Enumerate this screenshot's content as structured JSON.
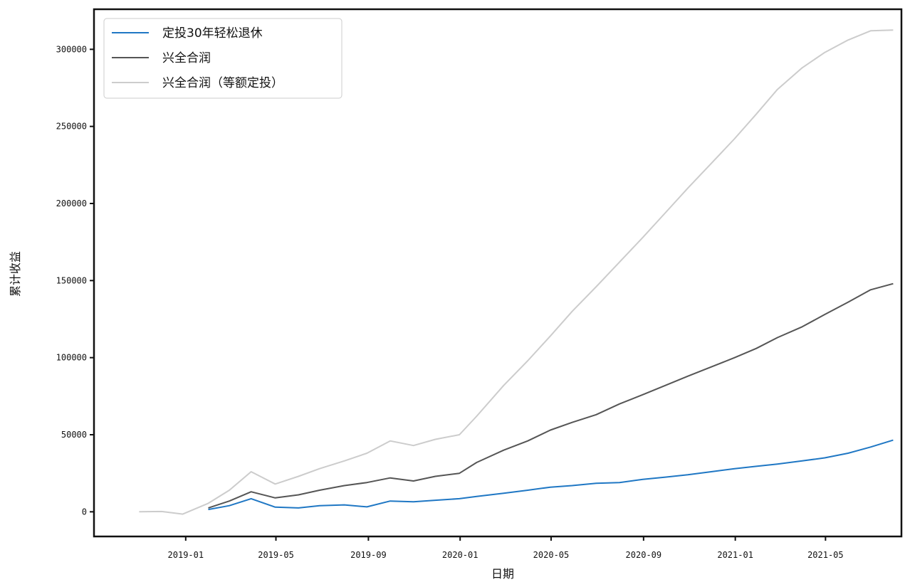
{
  "chart_data": {
    "type": "line",
    "xlabel": "日期",
    "ylabel": "累计收益",
    "x_ticks": [
      "2019-01",
      "2019-05",
      "2019-09",
      "2020-01",
      "2020-05",
      "2020-09",
      "2021-01",
      "2021-05"
    ],
    "y_ticks": [
      "0",
      "50000",
      "100000",
      "150000",
      "200000",
      "250000",
      "300000"
    ],
    "ylim": [
      -16000,
      326000
    ],
    "xlim": [
      "2018-09-01",
      "2021-08-10"
    ],
    "legend_position": "top-left",
    "grid": false,
    "x": [
      "2018-10-31",
      "2018-11-30",
      "2018-12-28",
      "2019-01-31",
      "2019-02-28",
      "2019-03-29",
      "2019-04-30",
      "2019-05-31",
      "2019-06-28",
      "2019-07-31",
      "2019-08-30",
      "2019-09-30",
      "2019-10-31",
      "2019-11-29",
      "2019-12-31",
      "2020-01-23",
      "2020-02-28",
      "2020-03-31",
      "2020-04-30",
      "2020-05-29",
      "2020-06-30",
      "2020-07-31",
      "2020-08-31",
      "2020-09-30",
      "2020-10-30",
      "2020-11-30",
      "2020-12-31",
      "2021-01-29",
      "2021-02-26",
      "2021-03-31",
      "2021-04-30",
      "2021-05-31",
      "2021-06-30",
      "2021-07-30"
    ],
    "series": [
      {
        "name": "定投30年轻松退休",
        "color": "#1f77c4",
        "values": [
          null,
          null,
          null,
          1500,
          4000,
          8500,
          3000,
          2500,
          4000,
          4500,
          3200,
          7000,
          6500,
          7500,
          8500,
          10000,
          12000,
          14000,
          16000,
          17000,
          18500,
          19000,
          21000,
          22500,
          24000,
          26000,
          28000,
          29500,
          31000,
          33000,
          35000,
          38000,
          42000,
          46500
        ]
      },
      {
        "name": "兴全合润",
        "color": "#555555",
        "values": [
          null,
          null,
          null,
          2500,
          7000,
          13000,
          9000,
          11000,
          14000,
          17000,
          19000,
          22000,
          20000,
          23000,
          25000,
          32000,
          40000,
          46000,
          53000,
          58000,
          63000,
          70000,
          76000,
          82000,
          88000,
          94000,
          100000,
          106000,
          113000,
          120000,
          128000,
          136000,
          144000,
          148000
        ]
      },
      {
        "name": "兴全合润（等额定投）",
        "color": "#cccccc",
        "values": [
          0,
          200,
          -1500,
          5500,
          14000,
          26000,
          18000,
          23000,
          28000,
          33000,
          38000,
          46000,
          43000,
          47000,
          50000,
          62000,
          82000,
          98000,
          114000,
          130000,
          146000,
          162000,
          178000,
          194000,
          210000,
          226000,
          242000,
          258000,
          274000,
          288000,
          298000,
          306000,
          312000,
          312500
        ]
      }
    ]
  }
}
